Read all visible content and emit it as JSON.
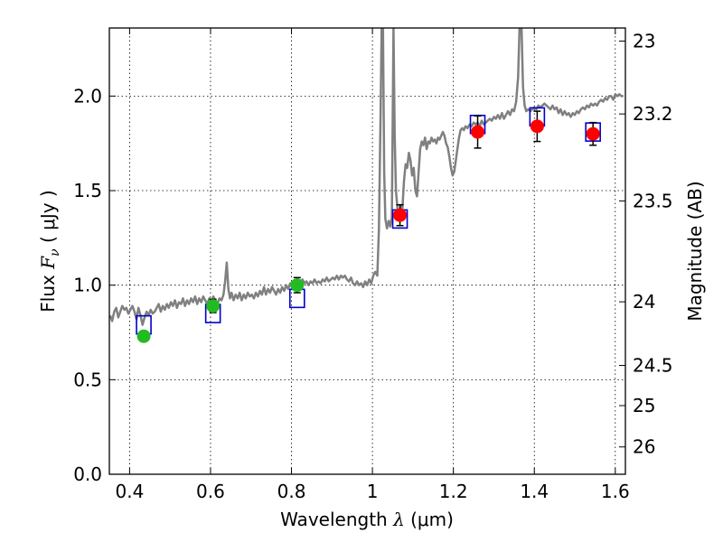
{
  "chart_data": {
    "type": "scatter",
    "xlabel_prefix": "Wavelength",
    "xlabel_symbol": "λ",
    "xlabel_unit": "(μm)",
    "ylabel_prefix": "Flux",
    "ylabel_symbol": "F",
    "ylabel_sub": "ν",
    "ylabel_unit": "( μJy )",
    "y2label": "Magnitude (AB)",
    "xlim": [
      0.35,
      1.625
    ],
    "ylim": [
      0.0,
      2.36
    ],
    "x_ticks": [
      {
        "v": 0.4,
        "label": "0.4"
      },
      {
        "v": 0.6,
        "label": "0.6"
      },
      {
        "v": 0.8,
        "label": "0.8"
      },
      {
        "v": 1.0,
        "label": "1"
      },
      {
        "v": 1.2,
        "label": "1.2"
      },
      {
        "v": 1.4,
        "label": "1.4"
      },
      {
        "v": 1.6,
        "label": "1.6"
      }
    ],
    "y_ticks": [
      {
        "v": 0.0,
        "label": "0.0"
      },
      {
        "v": 0.5,
        "label": "0.5"
      },
      {
        "v": 1.0,
        "label": "1.0"
      },
      {
        "v": 1.5,
        "label": "1.5"
      },
      {
        "v": 2.0,
        "label": "2.0"
      }
    ],
    "mag_ticks": [
      {
        "mag": 23,
        "label": "23"
      },
      {
        "mag": 23.2,
        "label": "23.2"
      },
      {
        "mag": 23.5,
        "label": "23.5"
      },
      {
        "mag": 24,
        "label": "24"
      },
      {
        "mag": 24.5,
        "label": "24.5"
      },
      {
        "mag": 25,
        "label": "25"
      },
      {
        "mag": 26,
        "label": "26"
      }
    ],
    "grid": true,
    "colors": {
      "model": "#808080",
      "box": "#0000cc",
      "optical": "#22bb22",
      "infrared": "#ff0000",
      "errorbar": "#000000"
    },
    "model_spectrum": [
      [
        0.352,
        0.84
      ],
      [
        0.357,
        0.81
      ],
      [
        0.362,
        0.86
      ],
      [
        0.367,
        0.88
      ],
      [
        0.372,
        0.83
      ],
      [
        0.377,
        0.86
      ],
      [
        0.382,
        0.89
      ],
      [
        0.387,
        0.87
      ],
      [
        0.392,
        0.88
      ],
      [
        0.397,
        0.85
      ],
      [
        0.402,
        0.87
      ],
      [
        0.407,
        0.89
      ],
      [
        0.412,
        0.86
      ],
      [
        0.417,
        0.82
      ],
      [
        0.422,
        0.88
      ],
      [
        0.427,
        0.84
      ],
      [
        0.432,
        0.79
      ],
      [
        0.437,
        0.83
      ],
      [
        0.442,
        0.86
      ],
      [
        0.447,
        0.84
      ],
      [
        0.452,
        0.87
      ],
      [
        0.457,
        0.85
      ],
      [
        0.462,
        0.86
      ],
      [
        0.467,
        0.88
      ],
      [
        0.472,
        0.9
      ],
      [
        0.477,
        0.86
      ],
      [
        0.482,
        0.89
      ],
      [
        0.487,
        0.87
      ],
      [
        0.492,
        0.9
      ],
      [
        0.497,
        0.88
      ],
      [
        0.502,
        0.91
      ],
      [
        0.507,
        0.89
      ],
      [
        0.512,
        0.92
      ],
      [
        0.517,
        0.88
      ],
      [
        0.522,
        0.91
      ],
      [
        0.527,
        0.9
      ],
      [
        0.532,
        0.93
      ],
      [
        0.537,
        0.89
      ],
      [
        0.542,
        0.92
      ],
      [
        0.547,
        0.9
      ],
      [
        0.552,
        0.93
      ],
      [
        0.557,
        0.91
      ],
      [
        0.562,
        0.94
      ],
      [
        0.567,
        0.9
      ],
      [
        0.572,
        0.93
      ],
      [
        0.577,
        0.91
      ],
      [
        0.582,
        0.94
      ],
      [
        0.587,
        0.92
      ],
      [
        0.592,
        0.9
      ],
      [
        0.597,
        0.93
      ],
      [
        0.602,
        0.91
      ],
      [
        0.607,
        0.94
      ],
      [
        0.612,
        0.92
      ],
      [
        0.617,
        0.9
      ],
      [
        0.622,
        0.93
      ],
      [
        0.627,
        0.92
      ],
      [
        0.632,
        0.95
      ],
      [
        0.636,
        1.02
      ],
      [
        0.64,
        1.12
      ],
      [
        0.644,
        0.98
      ],
      [
        0.648,
        0.93
      ],
      [
        0.652,
        0.96
      ],
      [
        0.657,
        0.92
      ],
      [
        0.662,
        0.95
      ],
      [
        0.667,
        0.93
      ],
      [
        0.672,
        0.96
      ],
      [
        0.677,
        0.92
      ],
      [
        0.682,
        0.95
      ],
      [
        0.687,
        0.93
      ],
      [
        0.692,
        0.96
      ],
      [
        0.697,
        0.94
      ],
      [
        0.702,
        0.95
      ],
      [
        0.707,
        0.93
      ],
      [
        0.712,
        0.96
      ],
      [
        0.717,
        0.94
      ],
      [
        0.722,
        0.97
      ],
      [
        0.727,
        0.95
      ],
      [
        0.732,
        0.99
      ],
      [
        0.737,
        0.95
      ],
      [
        0.742,
        0.98
      ],
      [
        0.747,
        0.96
      ],
      [
        0.752,
        0.99
      ],
      [
        0.757,
        0.97
      ],
      [
        0.762,
        0.95
      ],
      [
        0.767,
        0.98
      ],
      [
        0.772,
        0.96
      ],
      [
        0.777,
        0.99
      ],
      [
        0.782,
        0.97
      ],
      [
        0.787,
        1.0
      ],
      [
        0.792,
        0.98
      ],
      [
        0.797,
        1.01
      ],
      [
        0.802,
        0.99
      ],
      [
        0.807,
        1.02
      ],
      [
        0.812,
        1.0
      ],
      [
        0.817,
        1.02
      ],
      [
        0.822,
        1.0
      ],
      [
        0.827,
        1.03
      ],
      [
        0.832,
        1.01
      ],
      [
        0.837,
        1.02
      ],
      [
        0.842,
        1.0
      ],
      [
        0.847,
        1.02
      ],
      [
        0.852,
        1.01
      ],
      [
        0.857,
        1.03
      ],
      [
        0.862,
        1.01
      ],
      [
        0.867,
        1.02
      ],
      [
        0.872,
        1.01
      ],
      [
        0.877,
        1.03
      ],
      [
        0.882,
        1.02
      ],
      [
        0.887,
        1.04
      ],
      [
        0.892,
        1.02
      ],
      [
        0.897,
        1.03
      ],
      [
        0.902,
        1.04
      ],
      [
        0.907,
        1.03
      ],
      [
        0.912,
        1.05
      ],
      [
        0.917,
        1.03
      ],
      [
        0.922,
        1.05
      ],
      [
        0.927,
        1.04
      ],
      [
        0.932,
        1.05
      ],
      [
        0.937,
        1.03
      ],
      [
        0.942,
        1.02
      ],
      [
        0.947,
        1.04
      ],
      [
        0.952,
        1.01
      ],
      [
        0.957,
        1.0
      ],
      [
        0.962,
        1.02
      ],
      [
        0.967,
        1.0
      ],
      [
        0.972,
        1.01
      ],
      [
        0.977,
        0.99
      ],
      [
        0.982,
        1.02
      ],
      [
        0.987,
        1.0
      ],
      [
        0.992,
        1.03
      ],
      [
        0.997,
        1.01
      ],
      [
        1.002,
        1.05
      ],
      [
        1.007,
        1.07
      ],
      [
        1.012,
        1.05
      ],
      [
        1.016,
        1.3
      ],
      [
        1.02,
        1.9
      ],
      [
        1.023,
        2.4
      ],
      [
        1.026,
        2.4
      ],
      [
        1.029,
        1.6
      ],
      [
        1.032,
        1.35
      ],
      [
        1.036,
        1.3
      ],
      [
        1.04,
        1.34
      ],
      [
        1.044,
        1.31
      ],
      [
        1.048,
        1.36
      ],
      [
        1.052,
        2.36
      ],
      [
        1.055,
        1.8
      ],
      [
        1.058,
        1.5
      ],
      [
        1.062,
        1.4
      ],
      [
        1.066,
        1.38
      ],
      [
        1.07,
        1.42
      ],
      [
        1.074,
        1.4
      ],
      [
        1.078,
        1.55
      ],
      [
        1.082,
        1.64
      ],
      [
        1.086,
        1.62
      ],
      [
        1.09,
        1.7
      ],
      [
        1.094,
        1.66
      ],
      [
        1.098,
        1.58
      ],
      [
        1.102,
        1.62
      ],
      [
        1.106,
        1.5
      ],
      [
        1.11,
        1.47
      ],
      [
        1.114,
        1.6
      ],
      [
        1.118,
        1.72
      ],
      [
        1.122,
        1.76
      ],
      [
        1.126,
        1.74
      ],
      [
        1.13,
        1.78
      ],
      [
        1.134,
        1.72
      ],
      [
        1.138,
        1.76
      ],
      [
        1.142,
        1.75
      ],
      [
        1.146,
        1.78
      ],
      [
        1.15,
        1.76
      ],
      [
        1.154,
        1.77
      ],
      [
        1.158,
        1.75
      ],
      [
        1.162,
        1.78
      ],
      [
        1.166,
        1.77
      ],
      [
        1.17,
        1.79
      ],
      [
        1.174,
        1.81
      ],
      [
        1.178,
        1.79
      ],
      [
        1.182,
        1.75
      ],
      [
        1.186,
        1.73
      ],
      [
        1.19,
        1.68
      ],
      [
        1.194,
        1.62
      ],
      [
        1.198,
        1.58
      ],
      [
        1.202,
        1.6
      ],
      [
        1.206,
        1.66
      ],
      [
        1.21,
        1.72
      ],
      [
        1.214,
        1.78
      ],
      [
        1.218,
        1.82
      ],
      [
        1.222,
        1.83
      ],
      [
        1.226,
        1.82
      ],
      [
        1.23,
        1.84
      ],
      [
        1.235,
        1.83
      ],
      [
        1.24,
        1.85
      ],
      [
        1.245,
        1.84
      ],
      [
        1.25,
        1.86
      ],
      [
        1.255,
        1.85
      ],
      [
        1.26,
        1.86
      ],
      [
        1.265,
        1.84
      ],
      [
        1.27,
        1.87
      ],
      [
        1.275,
        1.85
      ],
      [
        1.28,
        1.86
      ],
      [
        1.285,
        1.87
      ],
      [
        1.29,
        1.88
      ],
      [
        1.295,
        1.87
      ],
      [
        1.3,
        1.89
      ],
      [
        1.305,
        1.88
      ],
      [
        1.31,
        1.9
      ],
      [
        1.315,
        1.88
      ],
      [
        1.32,
        1.91
      ],
      [
        1.325,
        1.88
      ],
      [
        1.33,
        1.9
      ],
      [
        1.335,
        1.92
      ],
      [
        1.34,
        1.9
      ],
      [
        1.345,
        1.93
      ],
      [
        1.35,
        1.92
      ],
      [
        1.355,
        1.97
      ],
      [
        1.36,
        2.1
      ],
      [
        1.364,
        2.4
      ],
      [
        1.368,
        2.4
      ],
      [
        1.372,
        2.05
      ],
      [
        1.376,
        1.95
      ],
      [
        1.38,
        1.92
      ],
      [
        1.385,
        1.93
      ],
      [
        1.39,
        1.92
      ],
      [
        1.395,
        1.93
      ],
      [
        1.4,
        1.94
      ],
      [
        1.405,
        1.93
      ],
      [
        1.41,
        1.95
      ],
      [
        1.415,
        1.94
      ],
      [
        1.42,
        1.95
      ],
      [
        1.425,
        1.96
      ],
      [
        1.43,
        1.95
      ],
      [
        1.435,
        1.94
      ],
      [
        1.44,
        1.93
      ],
      [
        1.445,
        1.95
      ],
      [
        1.45,
        1.93
      ],
      [
        1.455,
        1.94
      ],
      [
        1.46,
        1.91
      ],
      [
        1.465,
        1.93
      ],
      [
        1.47,
        1.9
      ],
      [
        1.475,
        1.92
      ],
      [
        1.48,
        1.9
      ],
      [
        1.485,
        1.91
      ],
      [
        1.49,
        1.89
      ],
      [
        1.495,
        1.91
      ],
      [
        1.5,
        1.9
      ],
      [
        1.505,
        1.92
      ],
      [
        1.51,
        1.91
      ],
      [
        1.515,
        1.93
      ],
      [
        1.52,
        1.94
      ],
      [
        1.525,
        1.93
      ],
      [
        1.53,
        1.95
      ],
      [
        1.535,
        1.94
      ],
      [
        1.54,
        1.96
      ],
      [
        1.545,
        1.95
      ],
      [
        1.55,
        1.96
      ],
      [
        1.555,
        1.95
      ],
      [
        1.56,
        1.97
      ],
      [
        1.565,
        1.98
      ],
      [
        1.57,
        1.97
      ],
      [
        1.575,
        1.99
      ],
      [
        1.58,
        1.98
      ],
      [
        1.585,
        2.0
      ],
      [
        1.59,
        2.0
      ],
      [
        1.595,
        1.98
      ],
      [
        1.6,
        2.01
      ],
      [
        1.605,
        2.0
      ],
      [
        1.61,
        2.01
      ],
      [
        1.615,
        2.0
      ],
      [
        1.62,
        2.0
      ]
    ],
    "model_boxes": [
      {
        "x": 0.435,
        "y": 0.79
      },
      {
        "x": 0.606,
        "y": 0.85
      },
      {
        "x": 0.814,
        "y": 0.93
      },
      {
        "x": 1.068,
        "y": 1.35
      },
      {
        "x": 1.26,
        "y": 1.85
      },
      {
        "x": 1.407,
        "y": 1.89
      },
      {
        "x": 1.545,
        "y": 1.81
      }
    ],
    "observed": [
      {
        "x": 0.435,
        "y": 0.73,
        "err": 0.02,
        "group": "optical"
      },
      {
        "x": 0.606,
        "y": 0.89,
        "err": 0.035,
        "group": "optical"
      },
      {
        "x": 0.814,
        "y": 1.0,
        "err": 0.04,
        "group": "optical"
      },
      {
        "x": 1.068,
        "y": 1.37,
        "err": 0.055,
        "group": "infrared"
      },
      {
        "x": 1.26,
        "y": 1.81,
        "err": 0.085,
        "group": "infrared"
      },
      {
        "x": 1.407,
        "y": 1.84,
        "err": 0.08,
        "group": "infrared"
      },
      {
        "x": 1.545,
        "y": 1.8,
        "err": 0.06,
        "group": "infrared"
      }
    ]
  }
}
